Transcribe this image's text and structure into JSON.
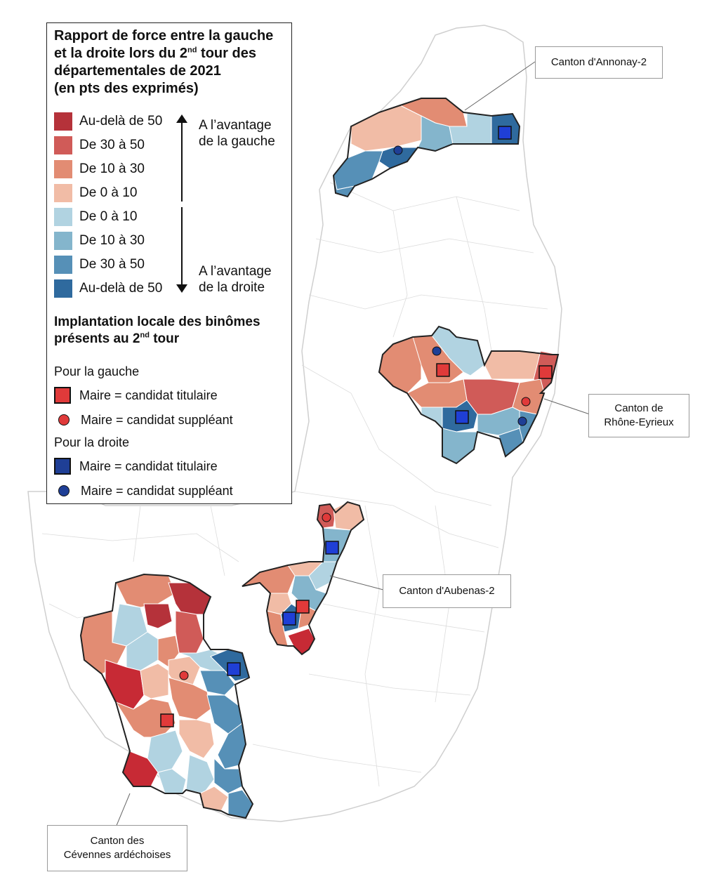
{
  "legend": {
    "title_line1": "Rapport de force entre la gauche",
    "title_line2a": "et la droite lors du 2",
    "title_line2_sup": "nd",
    "title_line2b": " tour des",
    "title_line3": "départementales de 2021",
    "title_line4": "(en pts des exprimés)",
    "classes": [
      {
        "label": "Au-delà de 50",
        "color": "#b5323a"
      },
      {
        "label": "De 30 à 50",
        "color": "#d05b58"
      },
      {
        "label": "De 10 à 30",
        "color": "#e28c73"
      },
      {
        "label": "De 0 à 10",
        "color": "#f1bca6"
      },
      {
        "label": "De 0 à 10",
        "color": "#b1d3e1"
      },
      {
        "label": "De 10 à 30",
        "color": "#84b5cc"
      },
      {
        "label": "De 30 à 50",
        "color": "#5690b7"
      },
      {
        "label": "Au-delà de 50",
        "color": "#2f6a9e"
      }
    ],
    "left_advantage_1": "A l’avantage",
    "left_advantage_2": "de la gauche",
    "right_advantage_1": "A l’avantage",
    "right_advantage_2": "de la droite",
    "section2_line1": "Implantation locale des binômes",
    "section2_line2a": "présents au 2",
    "section2_line2_sup": "nd",
    "section2_line2b": " tour",
    "left_group": "Pour la gauche",
    "right_group": "Pour la droite",
    "mayor_titular": "Maire = candidat titulaire",
    "mayor_substitute": "Maire = candidat suppléant",
    "left_marker_color": "#e03a3a",
    "right_marker_color": "#1f3f96"
  },
  "callouts": {
    "annonay": "Canton d'Annonay-2",
    "rhone_1": "Canton de",
    "rhone_2": "Rhône-Eyrieux",
    "aubenas": "Canton d'Aubenas-2",
    "cevennes_1": "Canton des",
    "cevennes_2": "Cévennes ardéchoises"
  }
}
